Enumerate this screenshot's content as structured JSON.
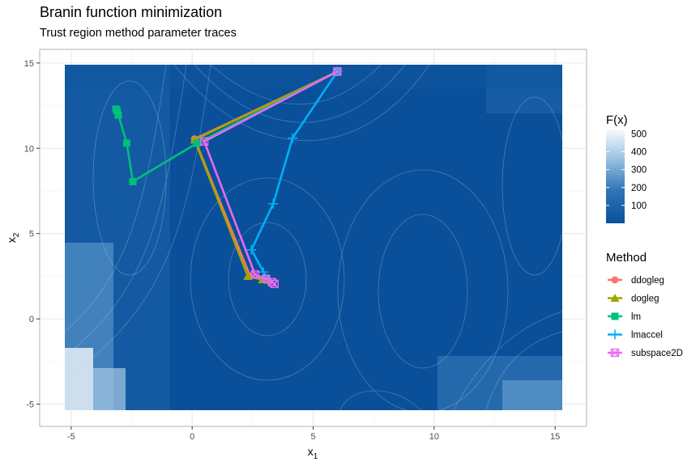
{
  "chart_data": {
    "type": "heatmap",
    "title": "Branin function minimization",
    "subtitle": "Trust region method parameter traces",
    "xlabel_base": "x",
    "xlabel_sub": "1",
    "ylabel_base": "x",
    "ylabel_sub": "2",
    "xlim": [
      -6.3,
      16.3
    ],
    "ylim": [
      -6.3,
      15.8
    ],
    "xticks": [
      -5,
      0,
      5,
      10,
      15
    ],
    "yticks": [
      -5,
      0,
      5,
      10,
      15
    ],
    "grid": true,
    "fill_legend": {
      "title": "F(x)",
      "ticks": [
        100,
        200,
        300,
        400,
        500
      ],
      "range": [
        0,
        520
      ]
    },
    "legend": {
      "title": "Method",
      "position": "right"
    },
    "series": [
      {
        "name": "ddogleg",
        "color": "#F8766D",
        "marker": "circle",
        "x": [
          6,
          0.1,
          2.4,
          2.95,
          3.14
        ],
        "y": [
          14.5,
          10.55,
          2.5,
          2.33,
          2.27
        ]
      },
      {
        "name": "dogleg",
        "color": "#A3A500",
        "marker": "triangle",
        "x": [
          6,
          0.1,
          2.3,
          2.9,
          3.14
        ],
        "y": [
          14.5,
          10.5,
          2.5,
          2.3,
          2.27
        ]
      },
      {
        "name": "lm",
        "color": "#00BF7D",
        "marker": "square",
        "x": [
          6,
          0.2,
          -2.45,
          -2.7,
          -3.05,
          -3.1,
          -3.15
        ],
        "y": [
          14.5,
          10.3,
          8.05,
          10.3,
          11.95,
          12.2,
          12.3
        ]
      },
      {
        "name": "lmaccel",
        "color": "#00B0F6",
        "marker": "plus",
        "x": [
          6,
          4.15,
          3.35,
          2.45,
          2.95,
          3.14
        ],
        "y": [
          14.5,
          10.6,
          6.75,
          4.05,
          2.75,
          2.27
        ]
      },
      {
        "name": "subspace2D",
        "color": "#E76BF3",
        "marker": "square-x",
        "x": [
          6,
          0.5,
          2.6,
          3.05,
          3.3,
          3.4
        ],
        "y": [
          14.5,
          10.4,
          2.6,
          2.35,
          2.15,
          2.05
        ]
      }
    ]
  }
}
